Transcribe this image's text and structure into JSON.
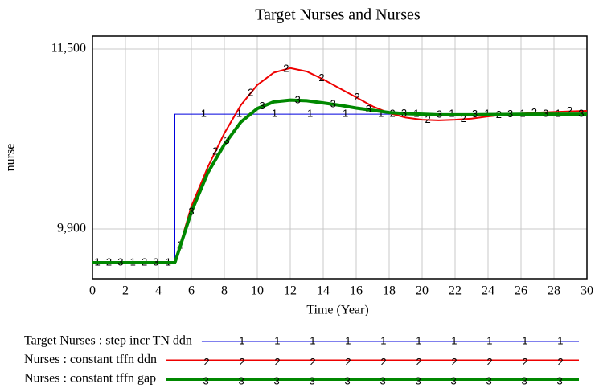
{
  "chart_data": {
    "type": "line",
    "title": "Target Nurses and Nurses",
    "y_label": "nurse",
    "x_label": "Time (Year)",
    "x": [
      0,
      1,
      2,
      3,
      4,
      5,
      5,
      6,
      7,
      8,
      9,
      10,
      11,
      12,
      13,
      14,
      15,
      16,
      17,
      18,
      19,
      20,
      21,
      22,
      23,
      24,
      25,
      26,
      27,
      28,
      29,
      30
    ],
    "series": [
      {
        "name": "Target Nurses : step incr TN ddn",
        "marker": "1",
        "color": "#0000dd",
        "width": 1,
        "values": [
          9600,
          9600,
          9600,
          9600,
          9600,
          9600,
          10920,
          10920,
          10920,
          10920,
          10920,
          10920,
          10920,
          10920,
          10920,
          10920,
          10920,
          10920,
          10920,
          10920,
          10920,
          10920,
          10920,
          10920,
          10920,
          10920,
          10920,
          10920,
          10920,
          10920,
          10920,
          10920
        ]
      },
      {
        "name": "Nurses : constant tffn ddn",
        "marker": "2",
        "color": "#ee0000",
        "width": 2,
        "values": [
          9600,
          9600,
          9600,
          9600,
          9600,
          9600,
          9600,
          10100,
          10450,
          10750,
          11000,
          11180,
          11290,
          11330,
          11300,
          11230,
          11150,
          11070,
          10990,
          10930,
          10890,
          10870,
          10865,
          10870,
          10880,
          10900,
          10915,
          10925,
          10935,
          10940,
          10945,
          10950
        ]
      },
      {
        "name": "Nurses : constant tffn gap",
        "marker": "3",
        "color": "#008800",
        "width": 4,
        "values": [
          9600,
          9600,
          9600,
          9600,
          9600,
          9600,
          9600,
          10050,
          10400,
          10650,
          10850,
          10970,
          11030,
          11045,
          11040,
          11020,
          11000,
          10975,
          10955,
          10935,
          10925,
          10920,
          10915,
          10915,
          10915,
          10917,
          10918,
          10919,
          10920,
          10920,
          10920,
          10920
        ]
      }
    ],
    "xlim": [
      0,
      30
    ],
    "xticks": [
      0,
      2,
      4,
      6,
      8,
      10,
      12,
      14,
      16,
      18,
      20,
      22,
      24,
      26,
      28,
      30
    ],
    "ylim": [
      9457,
      11614
    ],
    "yticks": [
      {
        "value": 9900,
        "label": "9,900"
      },
      {
        "value": 11500,
        "label": "11,500"
      }
    ],
    "grid": true
  }
}
